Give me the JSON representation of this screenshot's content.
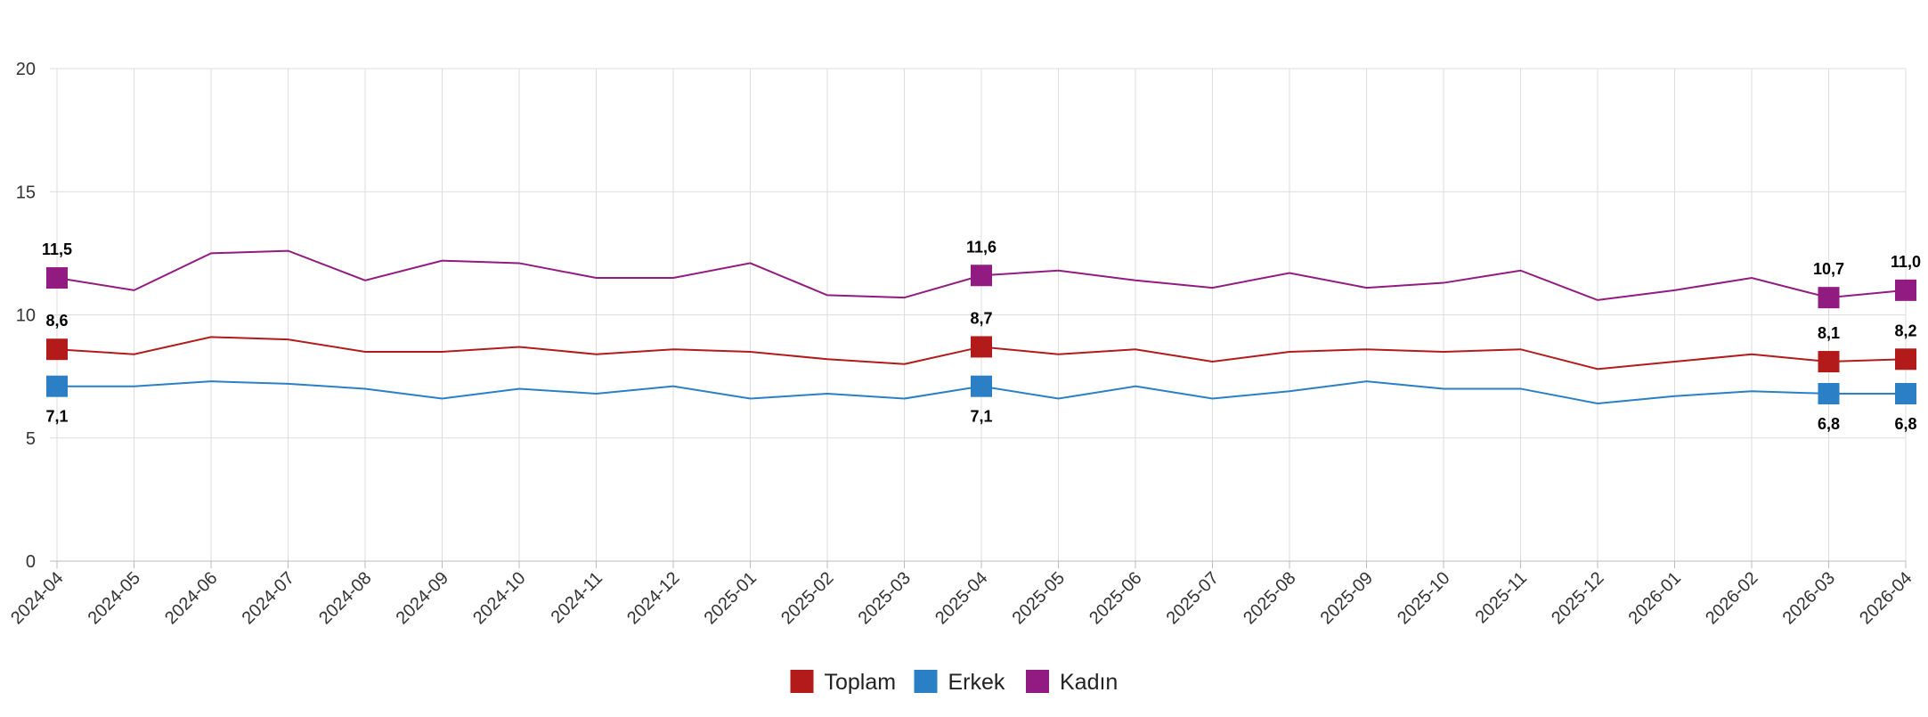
{
  "chart_data": {
    "type": "line",
    "title": "",
    "xlabel": "",
    "ylabel": "",
    "ylim": [
      0,
      20
    ],
    "yticks": [
      0,
      5,
      10,
      15,
      20
    ],
    "grid": true,
    "legend_position": "bottom",
    "x": [
      "2024-04",
      "2024-05",
      "2024-06",
      "2024-07",
      "2024-08",
      "2024-09",
      "2024-10",
      "2024-11",
      "2024-12",
      "2025-01",
      "2025-02",
      "2025-03",
      "2025-04",
      "2025-05",
      "2025-06",
      "2025-07",
      "2025-08",
      "2025-09",
      "2025-10",
      "2025-11",
      "2025-12",
      "2026-01",
      "2026-02",
      "2026-03",
      "2026-04"
    ],
    "series": [
      {
        "name": "Toplam",
        "color": "#b31b1b",
        "values": [
          8.6,
          8.4,
          9.1,
          9.0,
          8.5,
          8.5,
          8.7,
          8.4,
          8.6,
          8.5,
          8.2,
          8.0,
          8.7,
          8.4,
          8.6,
          8.1,
          8.5,
          8.6,
          8.5,
          8.6,
          7.8,
          8.1,
          8.4,
          8.1,
          8.2
        ],
        "labels": [
          {
            "index": 0,
            "text": "8,6",
            "position": "above"
          },
          {
            "index": 12,
            "text": "8,7",
            "position": "above"
          },
          {
            "index": 23,
            "text": "8,1",
            "position": "above"
          },
          {
            "index": 24,
            "text": "8,2",
            "position": "above"
          }
        ]
      },
      {
        "name": "Erkek",
        "color": "#2a7fc5",
        "values": [
          7.1,
          7.1,
          7.3,
          7.2,
          7.0,
          6.6,
          7.0,
          6.8,
          7.1,
          6.6,
          6.8,
          6.6,
          7.1,
          6.6,
          7.1,
          6.6,
          6.9,
          7.3,
          7.0,
          7.0,
          6.4,
          6.7,
          6.9,
          6.8,
          6.8
        ],
        "labels": [
          {
            "index": 0,
            "text": "7,1",
            "position": "below"
          },
          {
            "index": 12,
            "text": "7,1",
            "position": "below"
          },
          {
            "index": 23,
            "text": "6,8",
            "position": "below"
          },
          {
            "index": 24,
            "text": "6,8",
            "position": "below"
          }
        ]
      },
      {
        "name": "Kadın",
        "color": "#921b82",
        "values": [
          11.5,
          11.0,
          12.5,
          12.6,
          11.4,
          12.2,
          12.1,
          11.5,
          11.5,
          12.1,
          10.8,
          10.7,
          11.6,
          11.8,
          11.4,
          11.1,
          11.7,
          11.1,
          11.3,
          11.8,
          10.6,
          11.0,
          11.5,
          10.7,
          11.0
        ],
        "labels": [
          {
            "index": 0,
            "text": "11,5",
            "position": "above"
          },
          {
            "index": 12,
            "text": "11,6",
            "position": "above"
          },
          {
            "index": 23,
            "text": "10,7",
            "position": "above"
          },
          {
            "index": 24,
            "text": "11,0",
            "position": "above"
          }
        ]
      }
    ]
  }
}
